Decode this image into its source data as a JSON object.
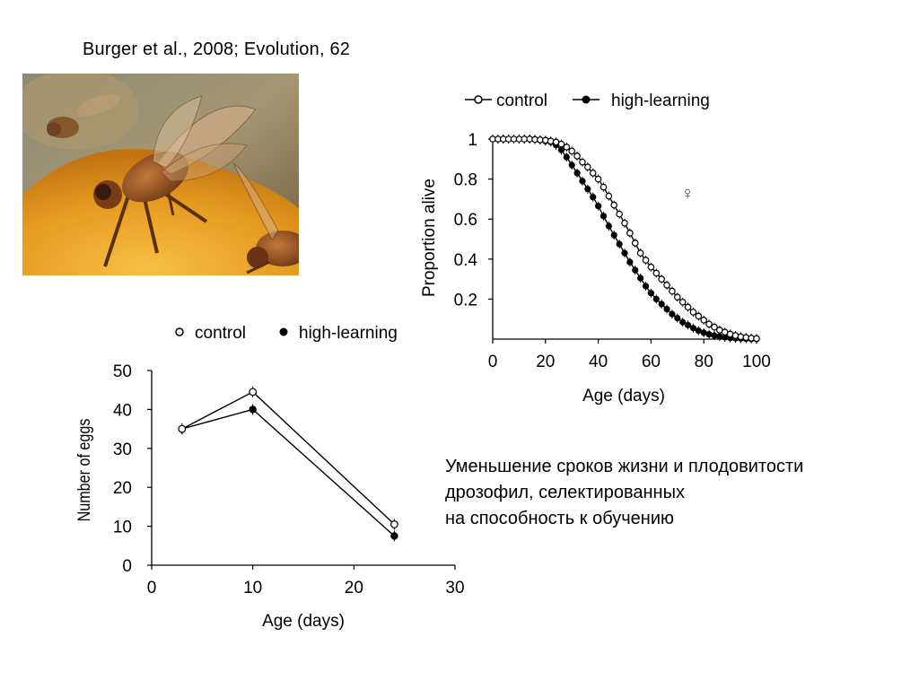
{
  "citation": "Burger et al., 2008; Evolution, 62",
  "caption": {
    "lines": [
      "Уменьшение сроков жизни и плодовитости",
      "дрозофил, селектированных",
      "на способность к обучению"
    ]
  },
  "photo": {
    "subject": "fruit-flies-on-orange"
  },
  "colors": {
    "filled_marker": "#000000",
    "open_marker": "#ffffff",
    "axis": "#000000"
  },
  "chart_data": [
    {
      "id": "survival",
      "type": "line",
      "title": "",
      "xlabel": "Age (days)",
      "ylabel": "Proportion alive",
      "xlim": [
        0,
        100
      ],
      "ylim": [
        0,
        1
      ],
      "xticks": [
        0,
        20,
        40,
        60,
        80,
        100
      ],
      "yticks": [
        0.2,
        0.4,
        0.6,
        0.8,
        1
      ],
      "ytick_labels": [
        "0.2",
        "0.4",
        "0.6",
        "0.8",
        "1"
      ],
      "annotation": "♀",
      "legend": {
        "position": "top",
        "entries": [
          "control",
          "high-learning"
        ]
      },
      "x": [
        0,
        2,
        4,
        6,
        8,
        10,
        12,
        14,
        16,
        18,
        20,
        22,
        24,
        26,
        28,
        30,
        32,
        34,
        36,
        38,
        40,
        42,
        44,
        46,
        48,
        50,
        52,
        54,
        56,
        58,
        60,
        62,
        64,
        66,
        68,
        70,
        72,
        74,
        76,
        78,
        80,
        82,
        84,
        86,
        88,
        90,
        92,
        94,
        96,
        98,
        100
      ],
      "series": [
        {
          "name": "control",
          "marker": "open",
          "values": [
            1,
            1,
            1,
            1,
            1,
            1,
            1,
            1,
            0.998,
            0.996,
            0.994,
            0.99,
            0.985,
            0.975,
            0.96,
            0.94,
            0.915,
            0.885,
            0.86,
            0.83,
            0.8,
            0.76,
            0.715,
            0.67,
            0.625,
            0.58,
            0.53,
            0.48,
            0.43,
            0.395,
            0.36,
            0.33,
            0.3,
            0.27,
            0.24,
            0.21,
            0.185,
            0.16,
            0.135,
            0.115,
            0.095,
            0.075,
            0.06,
            0.045,
            0.035,
            0.025,
            0.018,
            0.012,
            0.008,
            0.005,
            0.003
          ]
        },
        {
          "name": "high-learning",
          "marker": "filled",
          "values": [
            1,
            1,
            1,
            1,
            1,
            1,
            1,
            1,
            0.998,
            0.995,
            0.99,
            0.985,
            0.97,
            0.945,
            0.91,
            0.87,
            0.83,
            0.79,
            0.75,
            0.71,
            0.665,
            0.615,
            0.565,
            0.52,
            0.475,
            0.43,
            0.385,
            0.345,
            0.305,
            0.265,
            0.23,
            0.2,
            0.175,
            0.15,
            0.125,
            0.105,
            0.085,
            0.07,
            0.055,
            0.042,
            0.032,
            0.024,
            0.018,
            0.013,
            0.009,
            0.006,
            0.004,
            0.003,
            0.002,
            0.001,
            0
          ]
        }
      ]
    },
    {
      "id": "fecundity",
      "type": "line",
      "title": "",
      "xlabel": "Age (days)",
      "ylabel": "Number of eggs",
      "xlim": [
        0,
        30
      ],
      "ylim": [
        0,
        50
      ],
      "xticks": [
        0,
        10,
        20,
        30
      ],
      "yticks": [
        0,
        10,
        20,
        30,
        40,
        50
      ],
      "legend": {
        "position": "top",
        "entries": [
          "control",
          "high-learning"
        ]
      },
      "x": [
        3,
        10,
        24
      ],
      "series": [
        {
          "name": "control",
          "marker": "open",
          "values": [
            35,
            44.5,
            10.5
          ]
        },
        {
          "name": "high-learning",
          "marker": "filled",
          "values": [
            35,
            40,
            7.5
          ]
        }
      ]
    }
  ]
}
